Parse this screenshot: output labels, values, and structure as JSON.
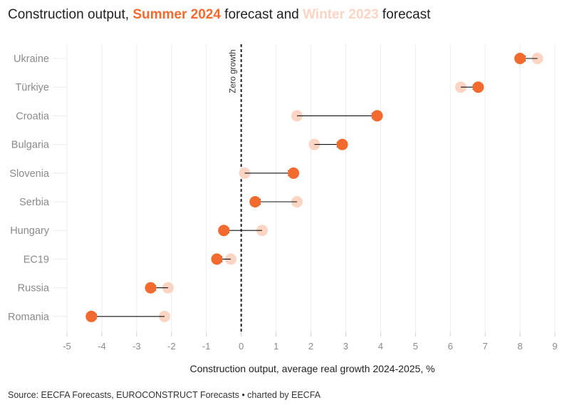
{
  "title": {
    "prefix": "Construction output, ",
    "summer": "Summer 2024",
    "middle": " forecast and ",
    "winter": "Winter 2023",
    "suffix": " forecast"
  },
  "source": "Source: EECFA Forecasts, EUROCONSTRUCT Forecasts • charted by EECFA",
  "colors": {
    "summer": "#f26a2e",
    "winter": "#fcd4c3",
    "grid": "#ececec",
    "arrow": "#111111"
  },
  "chart_data": {
    "type": "dumbbell",
    "title": "Construction output, Summer 2024 forecast and Winter 2023 forecast",
    "xlabel": "Construction output, average real growth 2024-2025, %",
    "ylabel": "",
    "xlim": [
      -5,
      9
    ],
    "xticks": [
      -5,
      -4,
      -3,
      -2,
      -1,
      0,
      1,
      2,
      3,
      4,
      5,
      6,
      7,
      8,
      9
    ],
    "reference_line": {
      "x": 0,
      "label": "Zero growth"
    },
    "series": [
      {
        "name": "Winter 2023",
        "role": "start"
      },
      {
        "name": "Summer 2024",
        "role": "end"
      }
    ],
    "categories": [
      "Ukraine",
      "Türkiye",
      "Croatia",
      "Bulgaria",
      "Slovenia",
      "Serbia",
      "Hungary",
      "EC19",
      "Russia",
      "Romania"
    ],
    "winter_2023": [
      8.5,
      6.3,
      1.6,
      2.1,
      0.1,
      1.6,
      0.6,
      -0.3,
      -2.1,
      -2.2
    ],
    "summer_2024": [
      8.0,
      6.8,
      3.9,
      2.9,
      1.5,
      0.4,
      -0.5,
      -0.7,
      -2.6,
      -4.3
    ]
  }
}
